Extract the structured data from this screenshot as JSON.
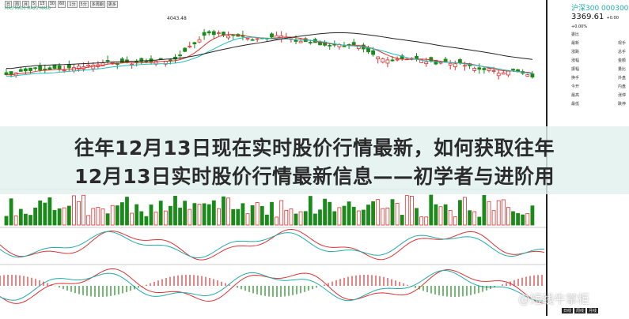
{
  "toolbar": {
    "items": [
      "日",
      "周",
      "月",
      "5",
      "15",
      "30",
      "60",
      "1分",
      "5分",
      "多周期",
      "更多"
    ]
  },
  "legend": "MA5 MA10 MA20 MA60",
  "peak_label": "4043.48",
  "quote": {
    "name": "沪深300 000300",
    "price": "3369.61",
    "change": "+0.00",
    "pct": "+0.00%",
    "rows": [
      [
        "委比",
        ""
      ],
      [
        "最新",
        "现手"
      ],
      [
        "涨跌",
        "总手"
      ],
      [
        "涨幅",
        "金额"
      ],
      [
        "振幅",
        "量比"
      ],
      [
        "换手",
        "外盘"
      ],
      [
        "今开",
        "内盘"
      ],
      [
        "最高",
        "涨停"
      ],
      [
        "最低",
        "跌停"
      ]
    ]
  },
  "title_line1": "往年12月13日现在实时股价行情最新，如何获取往年",
  "title_line2": "12月13日实时股价行情最新信息——初学者与进阶用",
  "watermark": "@短线牛掌柜",
  "tabs": [
    "日线",
    "周线",
    "月线"
  ],
  "colors": {
    "up": "#e03030",
    "down": "#1a8a1a",
    "banner": "#e1f0ee"
  }
}
